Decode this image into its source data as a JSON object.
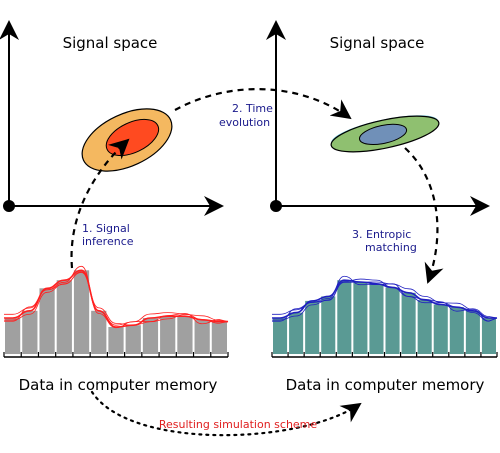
{
  "panels": {
    "left": {
      "title": "Signal space",
      "caption": "Data in computer memory",
      "bars": [
        0.4,
        0.48,
        0.73,
        0.82,
        0.93,
        0.48,
        0.3,
        0.32,
        0.4,
        0.42,
        0.42,
        0.38,
        0.36
      ],
      "bar_color": "#a0a0a0",
      "curve_color": "#ff2020"
    },
    "right": {
      "title": "Signal space",
      "caption": "Data in computer memory",
      "bars": [
        0.4,
        0.46,
        0.59,
        0.64,
        0.82,
        0.8,
        0.78,
        0.74,
        0.68,
        0.6,
        0.55,
        0.52,
        0.48,
        0.4
      ],
      "bar_color": "#5a9a94",
      "curve_color": "#2020c0"
    }
  },
  "steps": {
    "step1": {
      "line1": "1. Signal",
      "line2": "inference",
      "color": "#1a1a8c"
    },
    "step2": {
      "line1": "2. Time",
      "line2": "evolution",
      "color": "#1a1a8c"
    },
    "step3": {
      "line1": "3. Entropic",
      "line2": "matching",
      "color": "#1a1a8c"
    }
  },
  "result": {
    "label": "Resulting simulation scheme",
    "color": "#e02020"
  },
  "colors": {
    "ellipse_outer_left": "#f4b860",
    "ellipse_inner_left": "#ff4a20",
    "ellipse_outer_right": "#8fc070",
    "ellipse_inner_right": "#7090b8",
    "ellipse_cyan_right": "#80d8e8"
  }
}
